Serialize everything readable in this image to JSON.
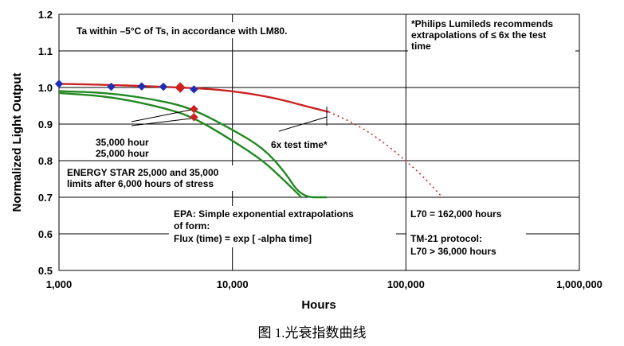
{
  "chart_data": {
    "type": "line",
    "title": "",
    "xlabel": "Hours",
    "ylabel": "Normalized Light Output",
    "x_scale": "log",
    "xlim": [
      1000,
      1000000
    ],
    "ylim": [
      0.5,
      1.2
    ],
    "x_ticks": [
      1000,
      10000,
      100000,
      1000000
    ],
    "x_tick_labels": [
      "1,000",
      "10,000",
      "100,000",
      "1,000,000"
    ],
    "y_ticks": [
      0.5,
      0.6,
      0.7,
      0.8,
      0.9,
      1.0,
      1.1,
      1.2
    ],
    "y_tick_labels": [
      "0.5",
      "0.6",
      "0.7",
      "0.8",
      "0.9",
      "1.0",
      "1.1",
      "1.2"
    ],
    "grid": true,
    "series": [
      {
        "color": "#cc2222",
        "style": "solid",
        "x": [
          1000,
          2000,
          3000,
          5000,
          8000,
          12000,
          18000,
          25000,
          36000
        ],
        "y": [
          1.01,
          1.007,
          1.004,
          1.0,
          0.995,
          0.985,
          0.97,
          0.952,
          0.933
        ]
      },
      {
        "color": "#cc2222",
        "style": "dotted",
        "x": [
          36000,
          50000,
          70000,
          100000,
          130000,
          162000
        ],
        "y": [
          0.933,
          0.903,
          0.86,
          0.8,
          0.75,
          0.7
        ]
      },
      {
        "color": "#228822",
        "style": "solid",
        "x": [
          1000,
          2000,
          4000,
          6000,
          10000,
          15000,
          20000,
          25000,
          35000
        ],
        "y": [
          0.99,
          0.985,
          0.963,
          0.94,
          0.885,
          0.835,
          0.77,
          0.7,
          0.7
        ]
      },
      {
        "color": "#228822",
        "style": "solid",
        "x": [
          1000,
          2000,
          4000,
          6000,
          10000,
          15000,
          20000,
          25000
        ],
        "y": [
          0.985,
          0.975,
          0.945,
          0.918,
          0.855,
          0.8,
          0.745,
          0.7
        ]
      }
    ],
    "markers_blue": {
      "color": "#1f2db5",
      "x": [
        1000,
        2000,
        3000,
        4000,
        5000,
        6000
      ],
      "y": [
        1.01,
        1.002,
        1.003,
        1.002,
        1.0,
        0.995
      ]
    },
    "markers_red": {
      "color": "#cc2222",
      "x": [
        5000,
        6000,
        6000
      ],
      "y": [
        1.0,
        0.941,
        0.919
      ]
    },
    "annotations": {
      "ta": "Ta within –5°C of Ts, in accordance with LM80.",
      "philips": [
        "*Philips Lumileds recommends",
        "extrapolations of ≤ 6x the test",
        "time"
      ],
      "hours_35k": "35,000 hour",
      "hours_25k": "25,000 hour",
      "test_time": "6x test time*",
      "energy_star": [
        "ENERGY STAR  25,000 and 35,000",
        "limits after 6,000 hours of stress"
      ],
      "epa": [
        "EPA: Simple exponential extrapolations",
        "of form:",
        "Flux (time) = exp [ -alpha time]"
      ],
      "l70": "L70 = 162,000 hours",
      "tm21": [
        "TM-21 protocol:",
        "L70 > 36,000 hours"
      ]
    }
  },
  "caption": "图 1.光衰指数曲线"
}
